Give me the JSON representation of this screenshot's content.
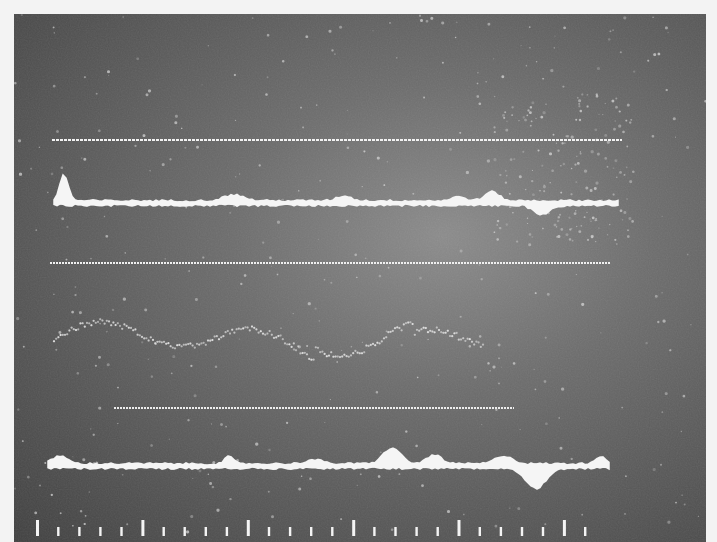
{
  "scene": {
    "kind": "photograph of an oscilloscope / recorder screen with several traces",
    "colors": {
      "background": "#5a5a5a",
      "trace": "#f4f4f4",
      "noise": "#d8d8d8",
      "border": "#f3f3f3"
    },
    "traces": [
      {
        "name": "baseline-1",
        "style": "dotted-line"
      },
      {
        "name": "signal-1",
        "style": "filled-waveform"
      },
      {
        "name": "baseline-2",
        "style": "dotted-line"
      },
      {
        "name": "signal-2",
        "style": "scattered-wave"
      },
      {
        "name": "baseline-3",
        "style": "dotted-line"
      },
      {
        "name": "signal-3",
        "style": "filled-waveform"
      },
      {
        "name": "time-markers",
        "style": "tick-marks"
      }
    ],
    "time_marker_count": 27
  }
}
